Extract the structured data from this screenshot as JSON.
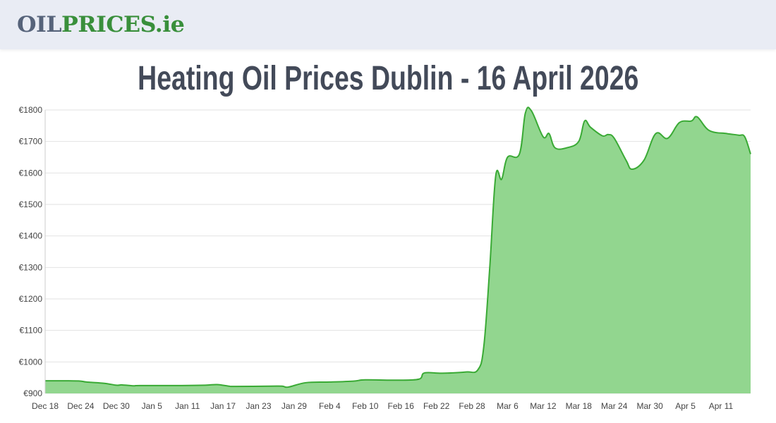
{
  "header": {
    "logo_part1": "OIL",
    "logo_part2": "PRICES.ie",
    "logo_colors": {
      "oil": "#56637a",
      "prices": "#398f3b"
    }
  },
  "title": "Heating Oil Prices Dublin - 16 April 2026",
  "chart_data": {
    "type": "area",
    "title": "Heating Oil Prices Dublin - 16 April 2026",
    "xlabel": "",
    "ylabel": "",
    "ylim": [
      900,
      1800
    ],
    "yticks": [
      900,
      1000,
      1100,
      1200,
      1300,
      1400,
      1500,
      1600,
      1700,
      1800
    ],
    "ytick_labels": [
      "€900",
      "€1000",
      "€1100",
      "€1200",
      "€1300",
      "€1400",
      "€1500",
      "€1600",
      "€1700",
      "€1800"
    ],
    "xlim": [
      "2025-12-18",
      "2026-04-16"
    ],
    "xticks": [
      "2025-12-18",
      "2025-12-24",
      "2025-12-30",
      "2026-01-05",
      "2026-01-11",
      "2026-01-17",
      "2026-01-23",
      "2026-01-29",
      "2026-02-04",
      "2026-02-10",
      "2026-02-16",
      "2026-02-22",
      "2026-02-28",
      "2026-03-06",
      "2026-03-12",
      "2026-03-18",
      "2026-03-24",
      "2026-03-30",
      "2026-04-05",
      "2026-04-11"
    ],
    "xtick_labels": [
      "Dec 18",
      "Dec 24",
      "Dec 30",
      "Jan 5",
      "Jan 11",
      "Jan 17",
      "Jan 23",
      "Jan 29",
      "Feb 4",
      "Feb 10",
      "Feb 16",
      "Feb 22",
      "Feb 28",
      "Mar 6",
      "Mar 12",
      "Mar 18",
      "Mar 24",
      "Mar 30",
      "Apr 5",
      "Apr 11"
    ],
    "grid": true,
    "line_color": "#3aaa35",
    "fill_color": "#92d68f",
    "points": [
      [
        "2025-12-18",
        940
      ],
      [
        "2025-12-22",
        940
      ],
      [
        "2025-12-24",
        939
      ],
      [
        "2025-12-25",
        936
      ],
      [
        "2025-12-28",
        932
      ],
      [
        "2025-12-30",
        926
      ],
      [
        "2025-12-31",
        927
      ],
      [
        "2026-01-02",
        924
      ],
      [
        "2026-01-03",
        925
      ],
      [
        "2026-01-10",
        925
      ],
      [
        "2026-01-14",
        926
      ],
      [
        "2026-01-16",
        928
      ],
      [
        "2026-01-18",
        923
      ],
      [
        "2026-01-19",
        922
      ],
      [
        "2026-01-25",
        923
      ],
      [
        "2026-01-27",
        923
      ],
      [
        "2026-01-28",
        920
      ],
      [
        "2026-01-31",
        934
      ],
      [
        "2026-02-04",
        936
      ],
      [
        "2026-02-08",
        939
      ],
      [
        "2026-02-10",
        943
      ],
      [
        "2026-02-15",
        942
      ],
      [
        "2026-02-19",
        945
      ],
      [
        "2026-02-20",
        965
      ],
      [
        "2026-02-23",
        964
      ],
      [
        "2026-02-27",
        968
      ],
      [
        "2026-03-01",
        975
      ],
      [
        "2026-03-02",
        1050
      ],
      [
        "2026-03-03",
        1300
      ],
      [
        "2026-03-04",
        1590
      ],
      [
        "2026-03-05",
        1580
      ],
      [
        "2026-03-06",
        1650
      ],
      [
        "2026-03-08",
        1660
      ],
      [
        "2026-03-09",
        1790
      ],
      [
        "2026-03-10",
        1798
      ],
      [
        "2026-03-12",
        1715
      ],
      [
        "2026-03-13",
        1725
      ],
      [
        "2026-03-14",
        1680
      ],
      [
        "2026-03-16",
        1680
      ],
      [
        "2026-03-18",
        1700
      ],
      [
        "2026-03-19",
        1765
      ],
      [
        "2026-03-20",
        1745
      ],
      [
        "2026-03-22",
        1718
      ],
      [
        "2026-03-23",
        1722
      ],
      [
        "2026-03-24",
        1710
      ],
      [
        "2026-03-26",
        1640
      ],
      [
        "2026-03-27",
        1612
      ],
      [
        "2026-03-29",
        1640
      ],
      [
        "2026-03-31",
        1725
      ],
      [
        "2026-04-02",
        1710
      ],
      [
        "2026-04-04",
        1760
      ],
      [
        "2026-04-06",
        1765
      ],
      [
        "2026-04-07",
        1778
      ],
      [
        "2026-04-09",
        1735
      ],
      [
        "2026-04-12",
        1725
      ],
      [
        "2026-04-14",
        1720
      ],
      [
        "2026-04-15",
        1715
      ],
      [
        "2026-04-16",
        1660
      ]
    ]
  }
}
